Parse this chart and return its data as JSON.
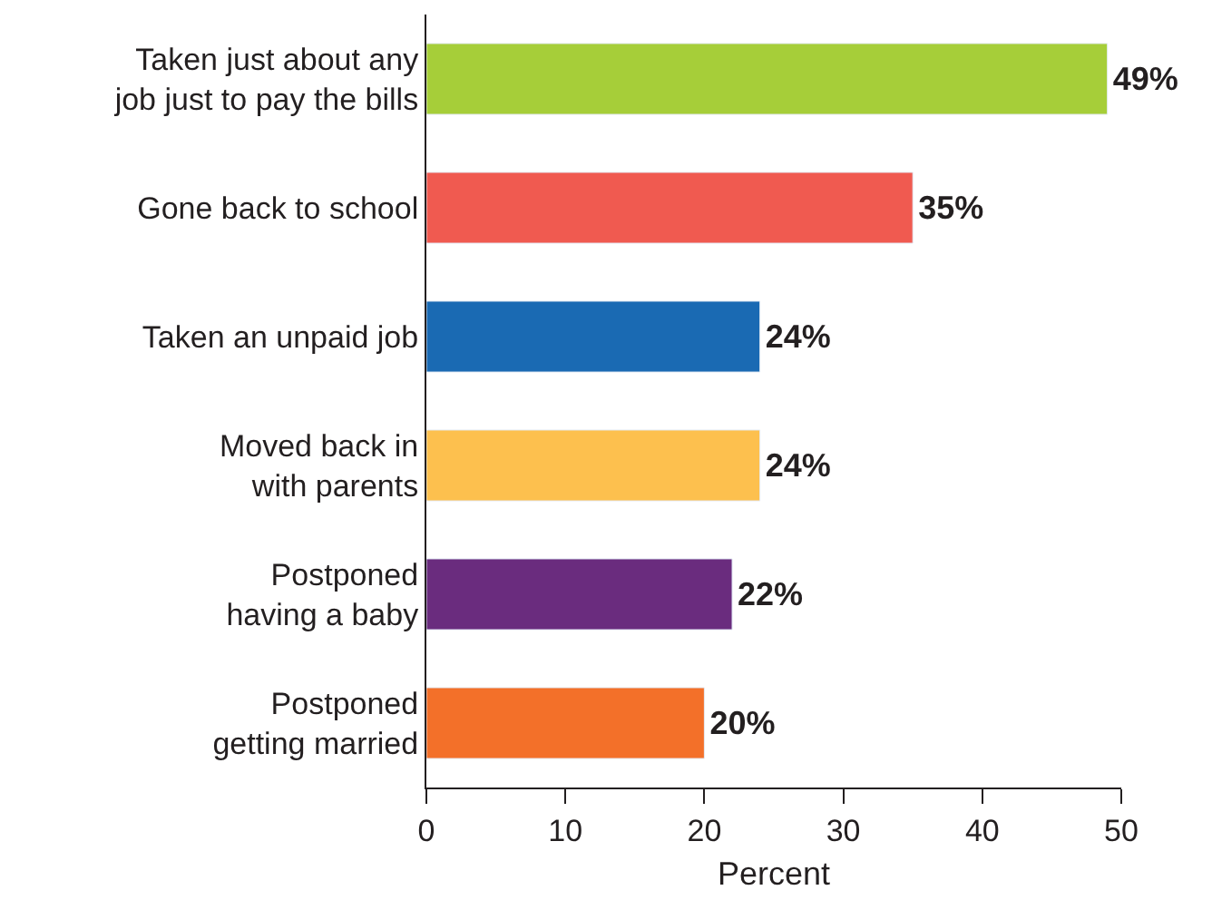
{
  "chart_data": {
    "type": "bar",
    "orientation": "horizontal",
    "xlabel": "Percent",
    "categories": [
      "Taken just about any\njob just to pay the bills",
      "Gone back to school",
      "Taken an unpaid job",
      "Moved back in\nwith parents",
      "Postponed\nhaving a baby",
      "Postponed\ngetting married"
    ],
    "values": [
      49,
      35,
      24,
      24,
      22,
      20
    ],
    "colors": [
      "#a6ce39",
      "#f05a50",
      "#1a6ab3",
      "#fdc04e",
      "#6a2c7e",
      "#f37029"
    ],
    "value_labels": [
      "49%",
      "35%",
      "24%",
      "24%",
      "22%",
      "20%"
    ],
    "xlim": [
      0,
      50
    ],
    "xticks": [
      0,
      10,
      20,
      30,
      40,
      50
    ],
    "legend": false
  }
}
